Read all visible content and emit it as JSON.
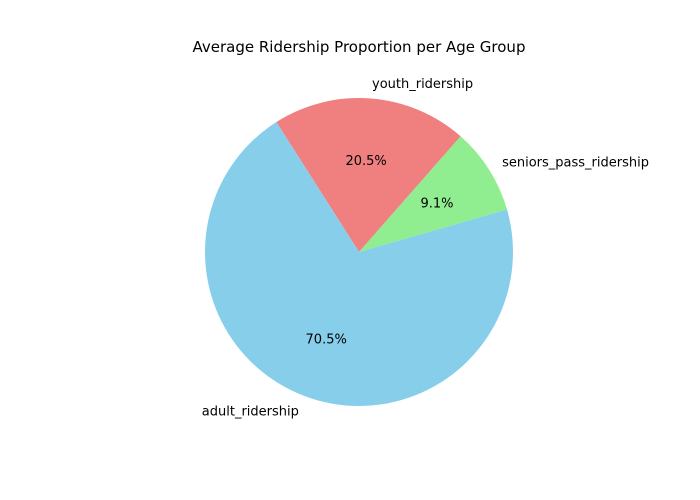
{
  "chart_data": {
    "type": "pie",
    "title": "Average Ridership Proportion per Age Group",
    "categories": [
      "adult_ridership",
      "youth_ridership",
      "seniors_pass_ridership"
    ],
    "values": [
      70.5,
      20.5,
      9.1
    ],
    "percent_labels": [
      "70.5%",
      "20.5%",
      "9.1%"
    ],
    "colors": [
      "#87CEEB",
      "#F08080",
      "#90EE90"
    ],
    "start_angle_deg": 16,
    "direction": "counterclockwise"
  }
}
